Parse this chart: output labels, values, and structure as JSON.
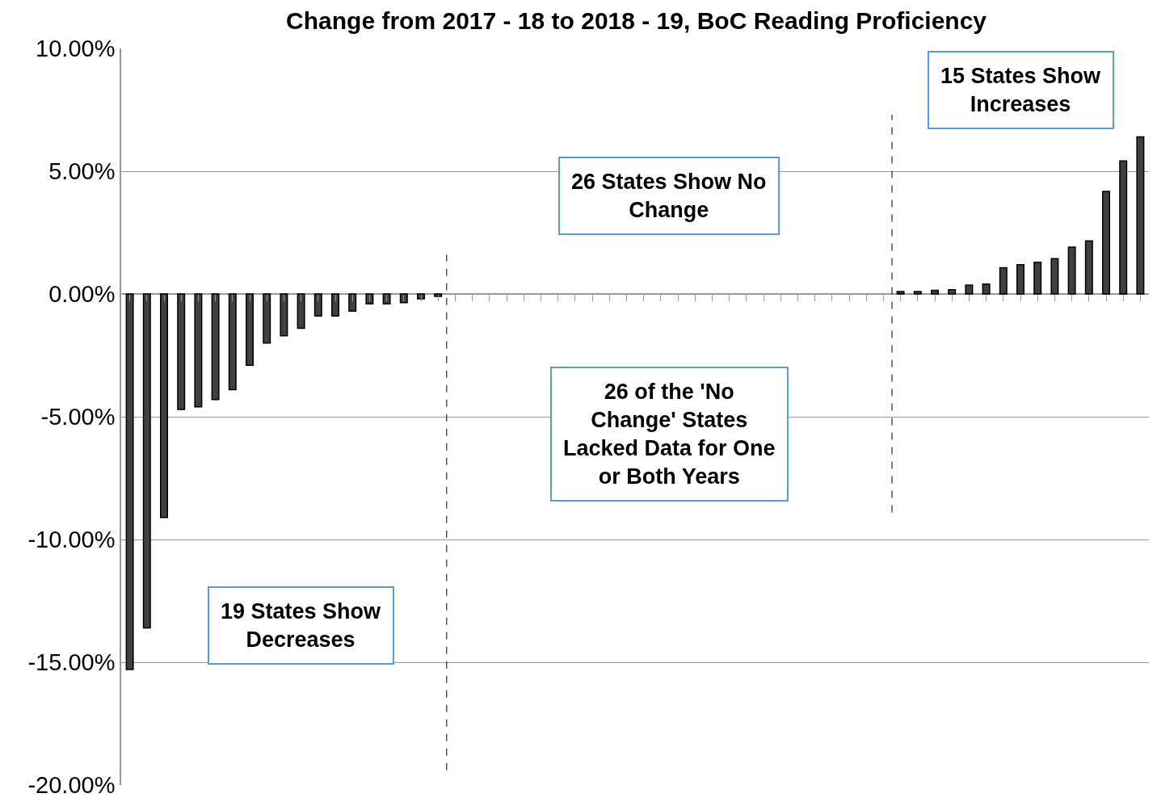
{
  "chart_data": {
    "type": "bar",
    "title": "Change from 2017 - 18 to 2018 - 19, BoC Reading Proficiency",
    "categories": [
      null,
      null,
      null,
      null,
      null,
      null,
      null,
      null,
      null,
      null,
      null,
      null,
      null,
      null,
      null,
      null,
      null,
      null,
      null,
      null,
      null,
      null,
      null,
      null,
      null,
      null,
      null,
      null,
      null,
      null,
      null,
      null,
      null,
      null,
      null,
      null,
      null,
      null,
      null,
      null,
      null,
      null,
      null,
      null,
      null,
      null,
      null,
      null,
      null,
      null,
      null,
      null,
      null,
      null,
      null,
      null,
      null,
      null,
      null,
      null
    ],
    "values": [
      -15.3,
      -13.6,
      -9.1,
      -4.7,
      -4.6,
      -4.3,
      -3.9,
      -2.9,
      -2.0,
      -1.7,
      -1.4,
      -0.9,
      -0.9,
      -0.7,
      -0.4,
      -0.4,
      -0.35,
      -0.2,
      -0.1,
      0,
      0,
      0,
      0,
      0,
      0,
      0,
      0,
      0,
      0,
      0,
      0,
      0,
      0,
      0,
      0,
      0,
      0,
      0,
      0,
      0,
      0,
      0,
      0,
      0,
      0,
      0.1,
      0.1,
      0.15,
      0.17,
      0.36,
      0.4,
      1.07,
      1.19,
      1.29,
      1.44,
      1.91,
      2.16,
      4.18,
      5.42,
      6.4
    ],
    "color": "#404040",
    "ylim": [
      -20,
      10
    ],
    "yticks": [
      {
        "value": -20,
        "label": "-20.00%"
      },
      {
        "value": -15,
        "label": "-15.00%"
      },
      {
        "value": -10,
        "label": "-10.00%"
      },
      {
        "value": -5,
        "label": "-5.00%"
      },
      {
        "value": 0,
        "label": "0.00%"
      },
      {
        "value": 5,
        "label": "5.00%"
      },
      {
        "value": 10,
        "label": "10.00%"
      }
    ],
    "grid": "y",
    "tick_labels": "y",
    "annotations": [
      "19 States Show Decreases",
      "26 States Show No Change",
      "26 of the 'No Change' States Lacked Data for One or Both Years",
      "15 States Show Increases"
    ]
  }
}
